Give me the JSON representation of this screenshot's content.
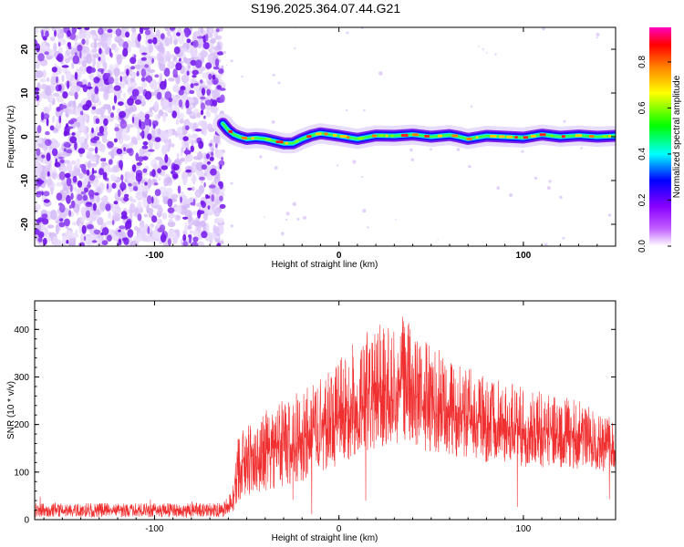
{
  "title": "S196.2025.364.07.44.G21",
  "chart_data": [
    {
      "type": "heatmap",
      "name": "spectrogram",
      "xlabel": "Height of straight line (km)",
      "ylabel": "Frequency (Hz)",
      "xlim": [
        -165,
        150
      ],
      "ylim": [
        -25,
        25
      ],
      "xticks": [
        -100,
        0,
        100
      ],
      "xtick_labels": [
        "-100",
        "0",
        "100"
      ],
      "yticks": [
        -20,
        -10,
        0,
        10,
        20
      ],
      "ytick_labels": [
        "-20",
        "-10",
        "0",
        "10",
        "20"
      ],
      "noise_region_x": [
        -165,
        -63
      ],
      "ridge": {
        "x": [
          -63,
          -60,
          -57,
          -54,
          -50,
          -45,
          -40,
          -35,
          -30,
          -25,
          -20,
          -15,
          -10,
          -5,
          0,
          10,
          20,
          30,
          40,
          50,
          60,
          65,
          70,
          80,
          90,
          100,
          110,
          120,
          130,
          140,
          150
        ],
        "freq": [
          3.0,
          1.5,
          0.5,
          0.0,
          -0.5,
          -0.3,
          -0.5,
          -1.0,
          -1.5,
          -1.5,
          -0.5,
          0.3,
          0.8,
          0.5,
          0.2,
          -0.5,
          0.3,
          0.2,
          0.5,
          0.0,
          0.4,
          0.0,
          -0.5,
          0.2,
          0.0,
          -0.2,
          0.5,
          0.0,
          0.3,
          0.0,
          0.2
        ]
      },
      "colorbar": {
        "label": "Normalized spectral amplitude",
        "ticks": [
          0.0,
          0.2,
          0.4,
          0.6,
          0.8
        ],
        "tick_labels": [
          "0.0",
          "0.2",
          "0.4",
          "0.6",
          "0.8"
        ],
        "range": [
          0,
          0.95
        ],
        "colors": [
          "#ffffff",
          "#8b00ff",
          "#0000ff",
          "#00ffff",
          "#00ff00",
          "#ffff00",
          "#ff8000",
          "#ff0000",
          "#ff00c0"
        ]
      }
    },
    {
      "type": "line",
      "name": "snr",
      "xlabel": "Height of straight line (km)",
      "ylabel": "SNR (10 * v/v)",
      "xlim": [
        -165,
        150
      ],
      "ylim": [
        0,
        460
      ],
      "xticks": [
        -100,
        0,
        100
      ],
      "xtick_labels": [
        "-100",
        "0",
        "100"
      ],
      "yticks": [
        0,
        100,
        200,
        300,
        400
      ],
      "ytick_labels": [
        "0",
        "100",
        "200",
        "300",
        "400"
      ],
      "color": "#f03030",
      "envelope": {
        "x": [
          -165,
          -63,
          -58,
          -55,
          -50,
          -40,
          -30,
          -20,
          -10,
          0,
          10,
          20,
          30,
          35,
          40,
          50,
          60,
          70,
          80,
          90,
          100,
          110,
          120,
          130,
          140,
          150
        ],
        "low": [
          5,
          5,
          10,
          40,
          50,
          60,
          70,
          80,
          100,
          110,
          130,
          150,
          160,
          160,
          150,
          140,
          130,
          130,
          120,
          120,
          110,
          110,
          110,
          105,
          100,
          100
        ],
        "high": [
          35,
          35,
          60,
          170,
          200,
          230,
          260,
          270,
          300,
          340,
          380,
          410,
          420,
          430,
          410,
          370,
          340,
          320,
          300,
          290,
          280,
          270,
          260,
          250,
          230,
          220
        ]
      }
    }
  ]
}
